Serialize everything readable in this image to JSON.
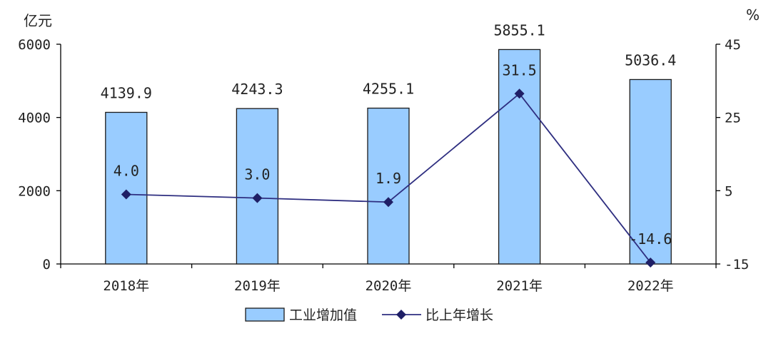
{
  "chart_data": {
    "type": "bar",
    "categories": [
      "2018年",
      "2019年",
      "2020年",
      "2021年",
      "2022年"
    ],
    "series": [
      {
        "name": "工业增加值",
        "type": "bar",
        "axis": "left",
        "values": [
          4139.9,
          4243.3,
          4255.1,
          5855.1,
          5036.4
        ],
        "labels": [
          "4139.9",
          "4243.3",
          "4255.1",
          "5855.1",
          "5036.4"
        ]
      },
      {
        "name": "比上年增长",
        "type": "line",
        "axis": "right",
        "values": [
          4.0,
          3.0,
          1.9,
          31.5,
          -14.6
        ],
        "labels": [
          "4.0",
          "3.0",
          "1.9",
          "31.5",
          "-14.6"
        ]
      }
    ],
    "y_left": {
      "label": "亿元",
      "ylim": [
        0,
        6000
      ],
      "ticks": [
        0,
        2000,
        4000,
        6000
      ]
    },
    "y_right": {
      "label": "%",
      "ylim": [
        -15,
        45
      ],
      "ticks": [
        -15,
        5,
        25,
        45
      ]
    },
    "legend_position": "bottom",
    "grid": false,
    "colors": {
      "bar_fill": "#99ccff",
      "bar_stroke": "#1a1a1a",
      "line": "#2e2e80",
      "marker": "#1f1f66",
      "axis": "#000000"
    }
  }
}
